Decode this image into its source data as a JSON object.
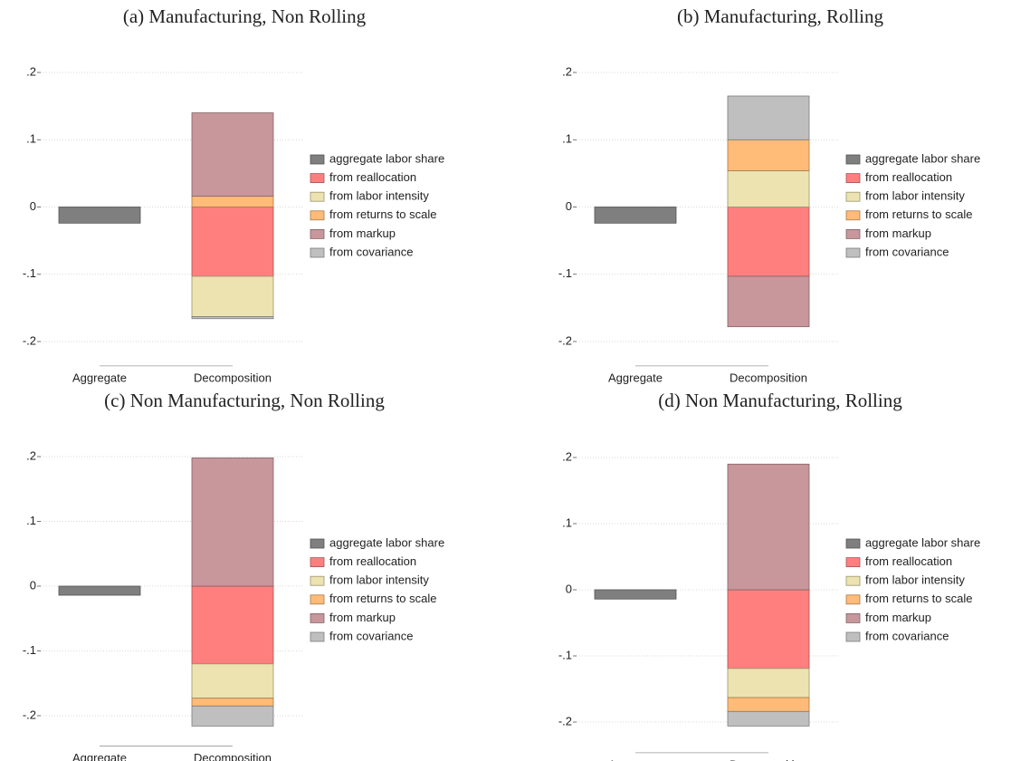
{
  "chart_data": [
    {
      "type": "bar",
      "stacked": true,
      "title": "(a) Manufacturing, Non Rolling",
      "categories": [
        "Aggregate",
        "Decomposition"
      ],
      "ylim": [
        -0.22,
        0.21
      ],
      "yticks": [
        {
          "value": 0.2,
          "label": ".2"
        },
        {
          "value": 0.1,
          "label": ".1"
        },
        0,
        {
          "value": -0.1,
          "label": "-.1"
        },
        {
          "value": -0.2,
          "label": "-.2"
        }
      ],
      "grid": true,
      "legend": "right",
      "series": [
        {
          "name": "aggregate labor share",
          "color": "#7f7f7f",
          "values": [
            -0.024,
            null
          ]
        },
        {
          "name": "from reallocation",
          "color": "#ff7f7f",
          "values": [
            null,
            -0.103
          ]
        },
        {
          "name": "from labor intensity",
          "color": "#ece3b0",
          "values": [
            null,
            -0.06
          ]
        },
        {
          "name": "from returns to scale",
          "color": "#ffbb77",
          "values": [
            null,
            0.016
          ]
        },
        {
          "name": "from markup",
          "color": "#c8979b",
          "values": [
            null,
            0.124
          ]
        },
        {
          "name": "from covariance",
          "color": "#bfbfbf",
          "values": [
            null,
            -0.003
          ]
        }
      ]
    },
    {
      "type": "bar",
      "stacked": true,
      "title": "(b) Manufacturing, Rolling",
      "categories": [
        "Aggregate",
        "Decomposition"
      ],
      "ylim": [
        -0.22,
        0.21
      ],
      "yticks": [
        {
          "value": 0.2,
          "label": ".2"
        },
        {
          "value": 0.1,
          "label": ".1"
        },
        0,
        {
          "value": -0.1,
          "label": "-.1"
        },
        {
          "value": -0.2,
          "label": "-.2"
        }
      ],
      "grid": true,
      "legend": "right",
      "series": [
        {
          "name": "aggregate labor share",
          "color": "#7f7f7f",
          "values": [
            -0.024,
            null
          ]
        },
        {
          "name": "from reallocation",
          "color": "#ff7f7f",
          "values": [
            null,
            -0.103
          ]
        },
        {
          "name": "from labor intensity",
          "color": "#ece3b0",
          "values": [
            null,
            0.054
          ]
        },
        {
          "name": "from returns to scale",
          "color": "#ffbb77",
          "values": [
            null,
            0.046
          ]
        },
        {
          "name": "from markup",
          "color": "#c8979b",
          "values": [
            null,
            -0.075
          ]
        },
        {
          "name": "from covariance",
          "color": "#bfbfbf",
          "values": [
            null,
            0.065
          ]
        }
      ]
    },
    {
      "type": "bar",
      "stacked": true,
      "title": "(c) Non Manufacturing, Non Rolling",
      "categories": [
        "Aggregate",
        "Decomposition"
      ],
      "ylim": [
        -0.23,
        0.21
      ],
      "yticks": [
        {
          "value": 0.2,
          "label": ".2"
        },
        {
          "value": 0.1,
          "label": ".1"
        },
        0,
        {
          "value": -0.1,
          "label": "-.1"
        },
        {
          "value": -0.2,
          "label": "-.2"
        }
      ],
      "grid": true,
      "legend": "right",
      "series": [
        {
          "name": "aggregate labor share",
          "color": "#7f7f7f",
          "values": [
            -0.014,
            null
          ]
        },
        {
          "name": "from reallocation",
          "color": "#ff7f7f",
          "values": [
            null,
            -0.12
          ]
        },
        {
          "name": "from labor intensity",
          "color": "#ece3b0",
          "values": [
            null,
            -0.053
          ]
        },
        {
          "name": "from returns to scale",
          "color": "#ffbb77",
          "values": [
            null,
            -0.012
          ]
        },
        {
          "name": "from markup",
          "color": "#c8979b",
          "values": [
            null,
            0.198
          ]
        },
        {
          "name": "from covariance",
          "color": "#bfbfbf",
          "values": [
            null,
            -0.031
          ]
        }
      ]
    },
    {
      "type": "bar",
      "stacked": true,
      "title": "(d) Non Manufacturing, Rolling",
      "categories": [
        "Aggregate",
        "Decomposition"
      ],
      "ylim": [
        -0.23,
        0.21
      ],
      "yticks": [
        {
          "value": 0.2,
          "label": ".2"
        },
        {
          "value": 0.1,
          "label": ".1"
        },
        0,
        {
          "value": -0.1,
          "label": "-.1"
        },
        {
          "value": -0.2,
          "label": "-.2"
        }
      ],
      "grid": true,
      "legend": "right",
      "series": [
        {
          "name": "aggregate labor share",
          "color": "#7f7f7f",
          "values": [
            -0.014,
            null
          ]
        },
        {
          "name": "from reallocation",
          "color": "#ff7f7f",
          "values": [
            null,
            -0.119
          ]
        },
        {
          "name": "from labor intensity",
          "color": "#ece3b0",
          "values": [
            null,
            -0.044
          ]
        },
        {
          "name": "from returns to scale",
          "color": "#ffbb77",
          "values": [
            null,
            -0.021
          ]
        },
        {
          "name": "from markup",
          "color": "#c8979b",
          "values": [
            null,
            0.19
          ]
        },
        {
          "name": "from covariance",
          "color": "#bfbfbf",
          "values": [
            null,
            -0.022
          ]
        }
      ]
    }
  ]
}
